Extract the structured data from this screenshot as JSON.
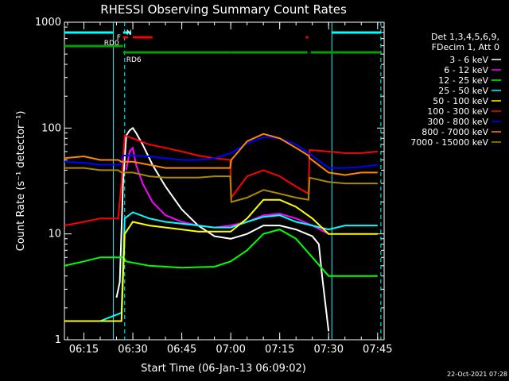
{
  "chart_data": {
    "type": "line",
    "title": "RHESSI Observing Summary Count Rates",
    "xlabel": "Start Time (06-Jan-13 06:09:02)",
    "ylabel": "Count Rate (s⁻¹ detector⁻¹)",
    "x_scale": "time",
    "x_range": [
      "06:09:02",
      "07:47:00"
    ],
    "x_ticks": [
      "06:15",
      "06:30",
      "06:45",
      "07:00",
      "07:15",
      "07:30",
      "07:45"
    ],
    "y_scale": "log",
    "ylim": [
      1,
      1000
    ],
    "y_ticks": [
      "1",
      "10",
      "100",
      "1000"
    ],
    "grid": false,
    "footer": "22-Oct-2021 07:28",
    "legend": {
      "placement": "right",
      "header_lines": [
        "Det 1,3,4,5,6,9,",
        "FDecim 1, Att 0"
      ]
    },
    "flag_bars": [
      {
        "label": "N",
        "color": "#00ffff",
        "segments": [
          [
            "06:09:02",
            "06:24:00"
          ],
          [
            "06:27:00",
            "06:29:30"
          ],
          [
            "07:31:00",
            "07:46:00"
          ]
        ]
      },
      {
        "label": "F",
        "color": "#ff0000",
        "segments": [
          [
            "06:27:00",
            "06:28:30"
          ],
          [
            "06:30:00",
            "06:36:00"
          ],
          [
            "07:23:00",
            "07:23:45"
          ]
        ]
      },
      {
        "label": "RD0",
        "color": "#00a000",
        "segments": [
          [
            "06:09:02",
            "06:27:00"
          ]
        ]
      },
      {
        "label": "RD6",
        "color": "#00a000",
        "segments": [
          [
            "06:27:00",
            "07:00:00"
          ],
          [
            "07:00:00",
            "07:23:30"
          ],
          [
            "07:24:30",
            "07:46:00"
          ]
        ]
      }
    ],
    "vlines": [
      {
        "x": "06:27:30",
        "color": "#00ffff",
        "style": "dashed"
      },
      {
        "x": "07:46:00",
        "color": "#00ffff",
        "style": "dashed"
      }
    ],
    "series": [
      {
        "name": "3 - 6 keV",
        "color": "#ffffff",
        "x": [
          "06:09:02",
          "06:20:00",
          "06:25:00",
          "06:26:00",
          "06:27:00",
          "06:28:00",
          "06:29:00",
          "06:30:00",
          "06:31:00",
          "06:33:00",
          "06:36:00",
          "06:40:00",
          "06:45:00",
          "06:50:00",
          "06:55:00",
          "07:00:00",
          "07:05:00",
          "07:10:00",
          "07:15:00",
          "07:20:00",
          "07:25:00",
          "07:27:00",
          "07:28:00",
          "07:30:00",
          "07:31:00"
        ],
        "y": [
          null,
          null,
          2.5,
          3.5,
          30,
          85,
          95,
          100,
          90,
          70,
          45,
          28,
          17,
          12,
          9.5,
          9,
          10,
          12,
          12,
          11,
          9.5,
          8,
          4,
          1.2,
          null
        ]
      },
      {
        "name": "6 - 12 keV",
        "color": "#ff00ff",
        "x": [
          "06:09:02",
          "06:27:00",
          "06:28:00",
          "06:29:00",
          "06:30:00",
          "06:31:00",
          "06:33:00",
          "06:36:00",
          "06:40:00",
          "06:45:00",
          "06:50:00",
          "06:55:00",
          "07:00:00",
          "07:05:00",
          "07:10:00",
          "07:15:00",
          "07:20:00",
          "07:25:00",
          "07:30:00",
          "07:31:00"
        ],
        "y": [
          null,
          null,
          40,
          60,
          65,
          45,
          30,
          20,
          15,
          13,
          12,
          11.5,
          12,
          13,
          15,
          15.5,
          14,
          12,
          10,
          null
        ]
      },
      {
        "name": "12 - 25 keV",
        "color": "#00ff00",
        "x": [
          "06:09:02",
          "06:15:00",
          "06:20:00",
          "06:27:00",
          "06:28:00",
          "06:35:00",
          "06:45:00",
          "06:55:00",
          "07:00:00",
          "07:05:00",
          "07:10:00",
          "07:15:00",
          "07:20:00",
          "07:25:00",
          "07:30:00",
          "07:40:00",
          "07:45:00"
        ],
        "y": [
          5,
          5.5,
          6,
          6,
          5.5,
          5,
          4.8,
          4.9,
          5.5,
          7,
          10,
          11,
          9,
          6,
          4,
          4,
          4
        ]
      },
      {
        "name": "25 - 50 keV",
        "color": "#00ffff",
        "x": [
          "06:09:02",
          "06:15:00",
          "06:20:00",
          "06:26:30",
          "06:27:30",
          "06:30:00",
          "06:35:00",
          "06:40:00",
          "06:45:00",
          "06:50:00",
          "06:55:00",
          "07:00:00",
          "07:05:00",
          "07:10:00",
          "07:15:00",
          "07:20:00",
          "07:25:00",
          "07:30:00",
          "07:35:00",
          "07:40:00",
          "07:45:00"
        ],
        "y": [
          1.5,
          1.5,
          1.5,
          1.8,
          14,
          16,
          14,
          13,
          12.5,
          12,
          11.5,
          11.5,
          13,
          14.5,
          15,
          13,
          12,
          11,
          12,
          12,
          12
        ]
      },
      {
        "name": "50 - 100 keV",
        "color": "#ffff00",
        "x": [
          "06:09:02",
          "06:15:00",
          "06:20:00",
          "06:26:30",
          "06:27:30",
          "06:30:00",
          "06:35:00",
          "06:40:00",
          "06:45:00",
          "06:50:00",
          "06:55:00",
          "07:00:00",
          "07:05:00",
          "07:10:00",
          "07:15:00",
          "07:20:00",
          "07:25:00",
          "07:30:00",
          "07:35:00",
          "07:40:00",
          "07:45:00"
        ],
        "y": [
          1.5,
          1.5,
          1.5,
          1.5,
          10,
          13,
          12,
          11.5,
          11,
          10.5,
          10.5,
          10.5,
          14,
          21,
          21,
          18,
          14,
          10,
          10,
          10,
          10
        ]
      },
      {
        "name": "100 - 300 keV",
        "color": "#ff0000",
        "x": [
          "06:09:02",
          "06:15:00",
          "06:20:00",
          "06:25:30",
          "06:26:30",
          "06:27:30",
          "06:30:00",
          "06:35:00",
          "06:40:00",
          "06:45:00",
          "06:50:00",
          "06:55:00",
          "06:59:50",
          "07:00:10",
          "07:05:00",
          "07:10:00",
          "07:15:00",
          "07:20:00",
          "07:23:50",
          "07:24:10",
          "07:30:00",
          "07:35:00",
          "07:40:00",
          "07:45:00"
        ],
        "y": [
          12,
          13,
          14,
          14,
          30,
          85,
          80,
          70,
          65,
          60,
          55,
          52,
          50,
          22,
          35,
          40,
          35,
          28,
          24,
          62,
          60,
          58,
          58,
          60
        ]
      },
      {
        "name": "300 - 800 keV",
        "color": "#0000ff",
        "x": [
          "06:09:02",
          "06:15:00",
          "06:20:00",
          "06:26:00",
          "06:27:00",
          "06:30:00",
          "06:35:00",
          "06:40:00",
          "06:45:00",
          "06:50:00",
          "06:55:00",
          "07:00:00",
          "07:05:00",
          "07:10:00",
          "07:15:00",
          "07:20:00",
          "07:25:00",
          "07:30:00",
          "07:35:00",
          "07:40:00",
          "07:45:00"
        ],
        "y": [
          48,
          47,
          45,
          45,
          55,
          55,
          54,
          52,
          50,
          50,
          52,
          58,
          72,
          82,
          80,
          70,
          55,
          42,
          42,
          43,
          45
        ]
      },
      {
        "name": "800 - 7000 keV",
        "color": "#ff8800",
        "x": [
          "06:09:02",
          "06:15:00",
          "06:20:00",
          "06:25:30",
          "06:26:30",
          "06:30:00",
          "06:35:00",
          "06:40:00",
          "06:45:00",
          "06:50:00",
          "06:55:00",
          "06:59:50",
          "07:00:10",
          "07:05:00",
          "07:10:00",
          "07:15:00",
          "07:20:00",
          "07:23:50",
          "07:24:10",
          "07:30:00",
          "07:35:00",
          "07:40:00",
          "07:45:00"
        ],
        "y": [
          52,
          54,
          50,
          50,
          48,
          48,
          45,
          42,
          42,
          42,
          42,
          42,
          50,
          75,
          88,
          80,
          65,
          55,
          52,
          38,
          36,
          38,
          38
        ]
      },
      {
        "name": "7000 - 15000 keV",
        "color": "#aa8800",
        "x": [
          "06:09:02",
          "06:15:00",
          "06:20:00",
          "06:25:30",
          "06:26:30",
          "06:30:00",
          "06:35:00",
          "06:40:00",
          "06:45:00",
          "06:50:00",
          "06:55:00",
          "06:59:50",
          "07:00:10",
          "07:05:00",
          "07:10:00",
          "07:15:00",
          "07:20:00",
          "07:23:50",
          "07:24:10",
          "07:30:00",
          "07:35:00",
          "07:40:00",
          "07:45:00"
        ],
        "y": [
          42,
          42,
          40,
          40,
          38,
          38,
          35,
          34,
          34,
          34,
          35,
          35,
          20,
          22,
          26,
          24,
          22,
          21,
          34,
          31,
          30,
          30,
          30
        ]
      }
    ]
  }
}
